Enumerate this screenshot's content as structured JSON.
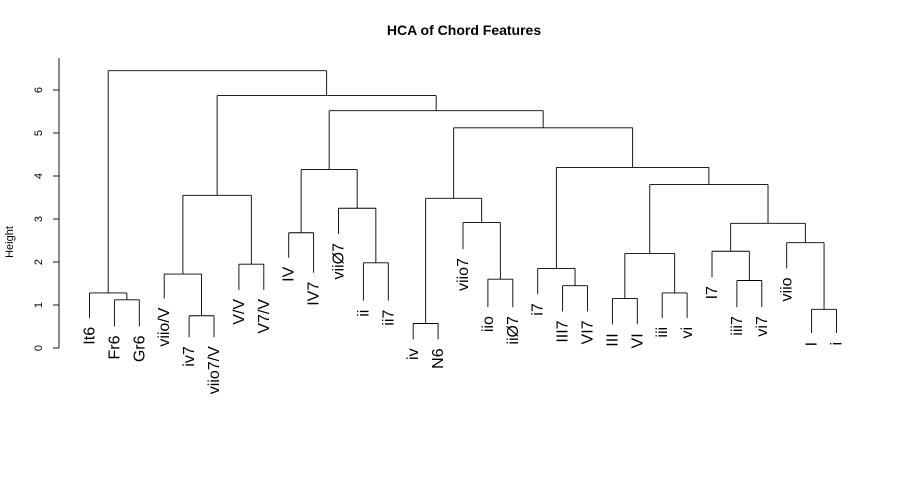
{
  "chart_data": {
    "type": "dendrogram",
    "title": "HCA of Chord Features",
    "ylabel": "Height",
    "ylim": [
      0,
      6.5
    ],
    "yticks": [
      0,
      1,
      2,
      3,
      4,
      5,
      6
    ],
    "yticks_labels": [
      "0",
      "1",
      "2",
      "3",
      "4",
      "5",
      "6"
    ],
    "leaves": [
      "It6",
      "Fr6",
      "Gr6",
      "viio/V",
      "iv7",
      "viio7/V",
      "V/V",
      "V7/V",
      "IV",
      "IV7",
      "viiØ7",
      "ii",
      "ii7",
      "iv",
      "N6",
      "viio7",
      "iio",
      "iiØ7",
      "i7",
      "III7",
      "VI7",
      "III",
      "VI",
      "iii",
      "vi",
      "I7",
      "iii7",
      "vi7",
      "viio",
      "I",
      "i"
    ],
    "leaf_heights": [
      0.7,
      0.5,
      0.5,
      1.15,
      0.25,
      0.25,
      1.35,
      1.35,
      2.1,
      1.75,
      2.65,
      1.1,
      1.1,
      0.2,
      0.2,
      2.3,
      0.95,
      0.95,
      1.25,
      0.85,
      0.85,
      0.55,
      0.55,
      0.7,
      0.7,
      1.65,
      0.95,
      0.95,
      1.85,
      0.35,
      0.35
    ],
    "merges": [
      {
        "left": "Fr6",
        "right": "Gr6",
        "height": 1.12
      },
      {
        "left": "It6",
        "right": "Fr6+Gr6",
        "height": 1.28
      },
      {
        "left": "iv7",
        "right": "viio7/V",
        "height": 0.75
      },
      {
        "left": "viio/V",
        "right": "iv7+viio7/V",
        "height": 1.72
      },
      {
        "left": "V/V",
        "right": "V7/V",
        "height": 1.95
      },
      {
        "left": "viio/V group",
        "right": "V/V group",
        "height": 3.55
      },
      {
        "left": "IV",
        "right": "IV7",
        "height": 2.68
      },
      {
        "left": "ii",
        "right": "ii7",
        "height": 1.98
      },
      {
        "left": "viiØ7",
        "right": "ii+ii7",
        "height": 3.25
      },
      {
        "left": "IV group",
        "right": "viiØ7 group",
        "height": 4.15
      },
      {
        "left": "iv",
        "right": "N6",
        "height": 0.57
      },
      {
        "left": "iio",
        "right": "iiØ7",
        "height": 1.6
      },
      {
        "left": "viio7",
        "right": "iio+iiØ7",
        "height": 2.92
      },
      {
        "left": "iv+N6",
        "right": "viio7 group",
        "height": 3.48
      },
      {
        "left": "III7",
        "right": "VI7",
        "height": 1.45
      },
      {
        "left": "i7",
        "right": "III7+VI7",
        "height": 1.85
      },
      {
        "left": "III",
        "right": "VI",
        "height": 1.15
      },
      {
        "left": "iii",
        "right": "vi",
        "height": 1.28
      },
      {
        "left": "III+VI",
        "right": "iii+vi",
        "height": 2.2
      },
      {
        "left": "iii7",
        "right": "vi7",
        "height": 1.57
      },
      {
        "left": "I7",
        "right": "iii7+vi7",
        "height": 2.25
      },
      {
        "left": "I",
        "right": "i",
        "height": 0.9
      },
      {
        "left": "viio",
        "right": "I+i",
        "height": 2.45
      },
      {
        "left": "I7 group",
        "right": "viio group",
        "height": 2.9
      },
      {
        "left": "III group",
        "right": "I7 group",
        "height": 3.8
      },
      {
        "left": "i7 group",
        "right": "III group",
        "height": 4.2
      },
      {
        "left": "iv group",
        "right": "i7 group",
        "height": 5.12
      },
      {
        "left": "IV group",
        "right": "iv group",
        "height": 5.52
      },
      {
        "left": "viio/V group",
        "right": "IV group",
        "height": 5.87
      },
      {
        "left": "It6 group",
        "right": "viio/V group",
        "height": 6.45
      }
    ]
  }
}
